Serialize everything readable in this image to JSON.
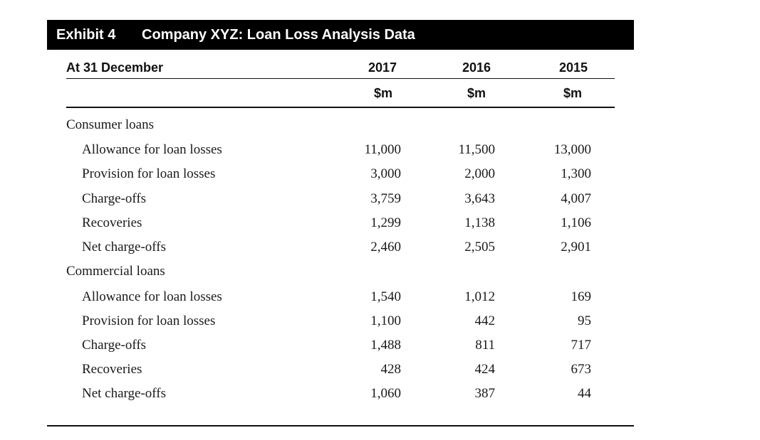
{
  "exhibit": {
    "number": "Exhibit 4",
    "title": "Company XYZ: Loan Loss Analysis Data"
  },
  "header": {
    "label": "At 31 December",
    "years": [
      "2017",
      "2016",
      "2015"
    ],
    "units": [
      "$m",
      "$m",
      "$m"
    ]
  },
  "sections": [
    {
      "name": "Consumer loans",
      "rows": [
        {
          "label": "Allowance for loan losses",
          "values": [
            "11,000",
            "11,500",
            "13,000"
          ]
        },
        {
          "label": "Provision for loan losses",
          "values": [
            "3,000",
            "2,000",
            "1,300"
          ]
        },
        {
          "label": "Charge-offs",
          "values": [
            "3,759",
            "3,643",
            "4,007"
          ]
        },
        {
          "label": "Recoveries",
          "values": [
            "1,299",
            "1,138",
            "1,106"
          ]
        },
        {
          "label": "Net charge-offs",
          "values": [
            "2,460",
            "2,505",
            "2,901"
          ]
        }
      ]
    },
    {
      "name": "Commercial loans",
      "rows": [
        {
          "label": "Allowance for loan losses",
          "values": [
            "1,540",
            "1,012",
            "169"
          ]
        },
        {
          "label": "Provision for loan losses",
          "values": [
            "1,100",
            "442",
            "95"
          ]
        },
        {
          "label": "Charge-offs",
          "values": [
            "1,488",
            "811",
            "717"
          ]
        },
        {
          "label": "Recoveries",
          "values": [
            "428",
            "424",
            "673"
          ]
        },
        {
          "label": "Net charge-offs",
          "values": [
            "1,060",
            "387",
            "44"
          ]
        }
      ]
    }
  ]
}
